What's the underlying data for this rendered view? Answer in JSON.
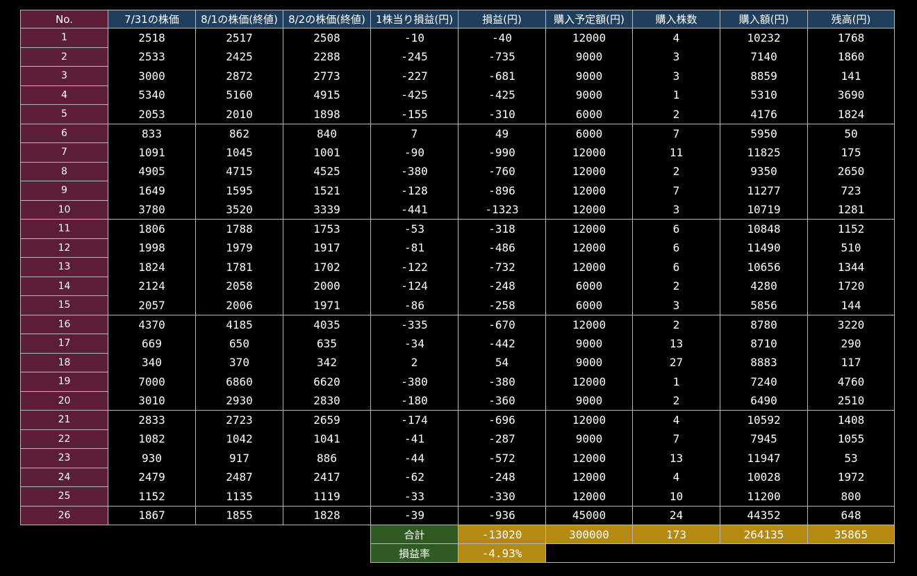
{
  "headers": {
    "no": "No.",
    "price_0731": "7/31の株価",
    "price_0801": "8/1の株価(終値)",
    "price_0802": "8/2の株価(終値)",
    "pl_per_share": "1株当り損益(円)",
    "pl": "損益(円)",
    "planned_amount": "購入予定額(円)",
    "shares": "購入株数",
    "purchase_amount": "購入額(円)",
    "balance": "残高(円)"
  },
  "rows": [
    {
      "no": "1",
      "p731": "2518",
      "p801": "2517",
      "p802": "2508",
      "pps": "-10",
      "pl": "-40",
      "plan": "12000",
      "shares": "4",
      "amount": "10232",
      "balance": "1768"
    },
    {
      "no": "2",
      "p731": "2533",
      "p801": "2425",
      "p802": "2288",
      "pps": "-245",
      "pl": "-735",
      "plan": "9000",
      "shares": "3",
      "amount": "7140",
      "balance": "1860"
    },
    {
      "no": "3",
      "p731": "3000",
      "p801": "2872",
      "p802": "2773",
      "pps": "-227",
      "pl": "-681",
      "plan": "9000",
      "shares": "3",
      "amount": "8859",
      "balance": "141"
    },
    {
      "no": "4",
      "p731": "5340",
      "p801": "5160",
      "p802": "4915",
      "pps": "-425",
      "pl": "-425",
      "plan": "9000",
      "shares": "1",
      "amount": "5310",
      "balance": "3690"
    },
    {
      "no": "5",
      "p731": "2053",
      "p801": "2010",
      "p802": "1898",
      "pps": "-155",
      "pl": "-310",
      "plan": "6000",
      "shares": "2",
      "amount": "4176",
      "balance": "1824"
    },
    {
      "no": "6",
      "p731": "833",
      "p801": "862",
      "p802": "840",
      "pps": "7",
      "pl": "49",
      "plan": "6000",
      "shares": "7",
      "amount": "5950",
      "balance": "50"
    },
    {
      "no": "7",
      "p731": "1091",
      "p801": "1045",
      "p802": "1001",
      "pps": "-90",
      "pl": "-990",
      "plan": "12000",
      "shares": "11",
      "amount": "11825",
      "balance": "175"
    },
    {
      "no": "8",
      "p731": "4905",
      "p801": "4715",
      "p802": "4525",
      "pps": "-380",
      "pl": "-760",
      "plan": "12000",
      "shares": "2",
      "amount": "9350",
      "balance": "2650"
    },
    {
      "no": "9",
      "p731": "1649",
      "p801": "1595",
      "p802": "1521",
      "pps": "-128",
      "pl": "-896",
      "plan": "12000",
      "shares": "7",
      "amount": "11277",
      "balance": "723"
    },
    {
      "no": "10",
      "p731": "3780",
      "p801": "3520",
      "p802": "3339",
      "pps": "-441",
      "pl": "-1323",
      "plan": "12000",
      "shares": "3",
      "amount": "10719",
      "balance": "1281"
    },
    {
      "no": "11",
      "p731": "1806",
      "p801": "1788",
      "p802": "1753",
      "pps": "-53",
      "pl": "-318",
      "plan": "12000",
      "shares": "6",
      "amount": "10848",
      "balance": "1152"
    },
    {
      "no": "12",
      "p731": "1998",
      "p801": "1979",
      "p802": "1917",
      "pps": "-81",
      "pl": "-486",
      "plan": "12000",
      "shares": "6",
      "amount": "11490",
      "balance": "510"
    },
    {
      "no": "13",
      "p731": "1824",
      "p801": "1781",
      "p802": "1702",
      "pps": "-122",
      "pl": "-732",
      "plan": "12000",
      "shares": "6",
      "amount": "10656",
      "balance": "1344"
    },
    {
      "no": "14",
      "p731": "2124",
      "p801": "2058",
      "p802": "2000",
      "pps": "-124",
      "pl": "-248",
      "plan": "6000",
      "shares": "2",
      "amount": "4280",
      "balance": "1720"
    },
    {
      "no": "15",
      "p731": "2057",
      "p801": "2006",
      "p802": "1971",
      "pps": "-86",
      "pl": "-258",
      "plan": "6000",
      "shares": "3",
      "amount": "5856",
      "balance": "144"
    },
    {
      "no": "16",
      "p731": "4370",
      "p801": "4185",
      "p802": "4035",
      "pps": "-335",
      "pl": "-670",
      "plan": "12000",
      "shares": "2",
      "amount": "8780",
      "balance": "3220"
    },
    {
      "no": "17",
      "p731": "669",
      "p801": "650",
      "p802": "635",
      "pps": "-34",
      "pl": "-442",
      "plan": "9000",
      "shares": "13",
      "amount": "8710",
      "balance": "290"
    },
    {
      "no": "18",
      "p731": "340",
      "p801": "370",
      "p802": "342",
      "pps": "2",
      "pl": "54",
      "plan": "9000",
      "shares": "27",
      "amount": "8883",
      "balance": "117"
    },
    {
      "no": "19",
      "p731": "7000",
      "p801": "6860",
      "p802": "6620",
      "pps": "-380",
      "pl": "-380",
      "plan": "12000",
      "shares": "1",
      "amount": "7240",
      "balance": "4760"
    },
    {
      "no": "20",
      "p731": "3010",
      "p801": "2930",
      "p802": "2830",
      "pps": "-180",
      "pl": "-360",
      "plan": "9000",
      "shares": "2",
      "amount": "6490",
      "balance": "2510"
    },
    {
      "no": "21",
      "p731": "2833",
      "p801": "2723",
      "p802": "2659",
      "pps": "-174",
      "pl": "-696",
      "plan": "12000",
      "shares": "4",
      "amount": "10592",
      "balance": "1408"
    },
    {
      "no": "22",
      "p731": "1082",
      "p801": "1042",
      "p802": "1041",
      "pps": "-41",
      "pl": "-287",
      "plan": "9000",
      "shares": "7",
      "amount": "7945",
      "balance": "1055"
    },
    {
      "no": "23",
      "p731": "930",
      "p801": "917",
      "p802": "886",
      "pps": "-44",
      "pl": "-572",
      "plan": "12000",
      "shares": "13",
      "amount": "11947",
      "balance": "53"
    },
    {
      "no": "24",
      "p731": "2479",
      "p801": "2487",
      "p802": "2417",
      "pps": "-62",
      "pl": "-248",
      "plan": "12000",
      "shares": "4",
      "amount": "10028",
      "balance": "1972"
    },
    {
      "no": "25",
      "p731": "1152",
      "p801": "1135",
      "p802": "1119",
      "pps": "-33",
      "pl": "-330",
      "plan": "12000",
      "shares": "10",
      "amount": "11200",
      "balance": "800"
    },
    {
      "no": "26",
      "p731": "1867",
      "p801": "1855",
      "p802": "1828",
      "pps": "-39",
      "pl": "-936",
      "plan": "45000",
      "shares": "24",
      "amount": "44352",
      "balance": "648"
    }
  ],
  "totals": {
    "label": "合計",
    "pl": "-13020",
    "plan": "300000",
    "shares": "173",
    "amount": "264135",
    "balance": "35865"
  },
  "rate": {
    "label": "損益率",
    "value": "-4.93%"
  },
  "colors": {
    "no_column": "#5b1e36",
    "header": "#203e5e",
    "summary_label": "#2f5a22",
    "summary_value": "#b58a12",
    "background": "#000000"
  }
}
